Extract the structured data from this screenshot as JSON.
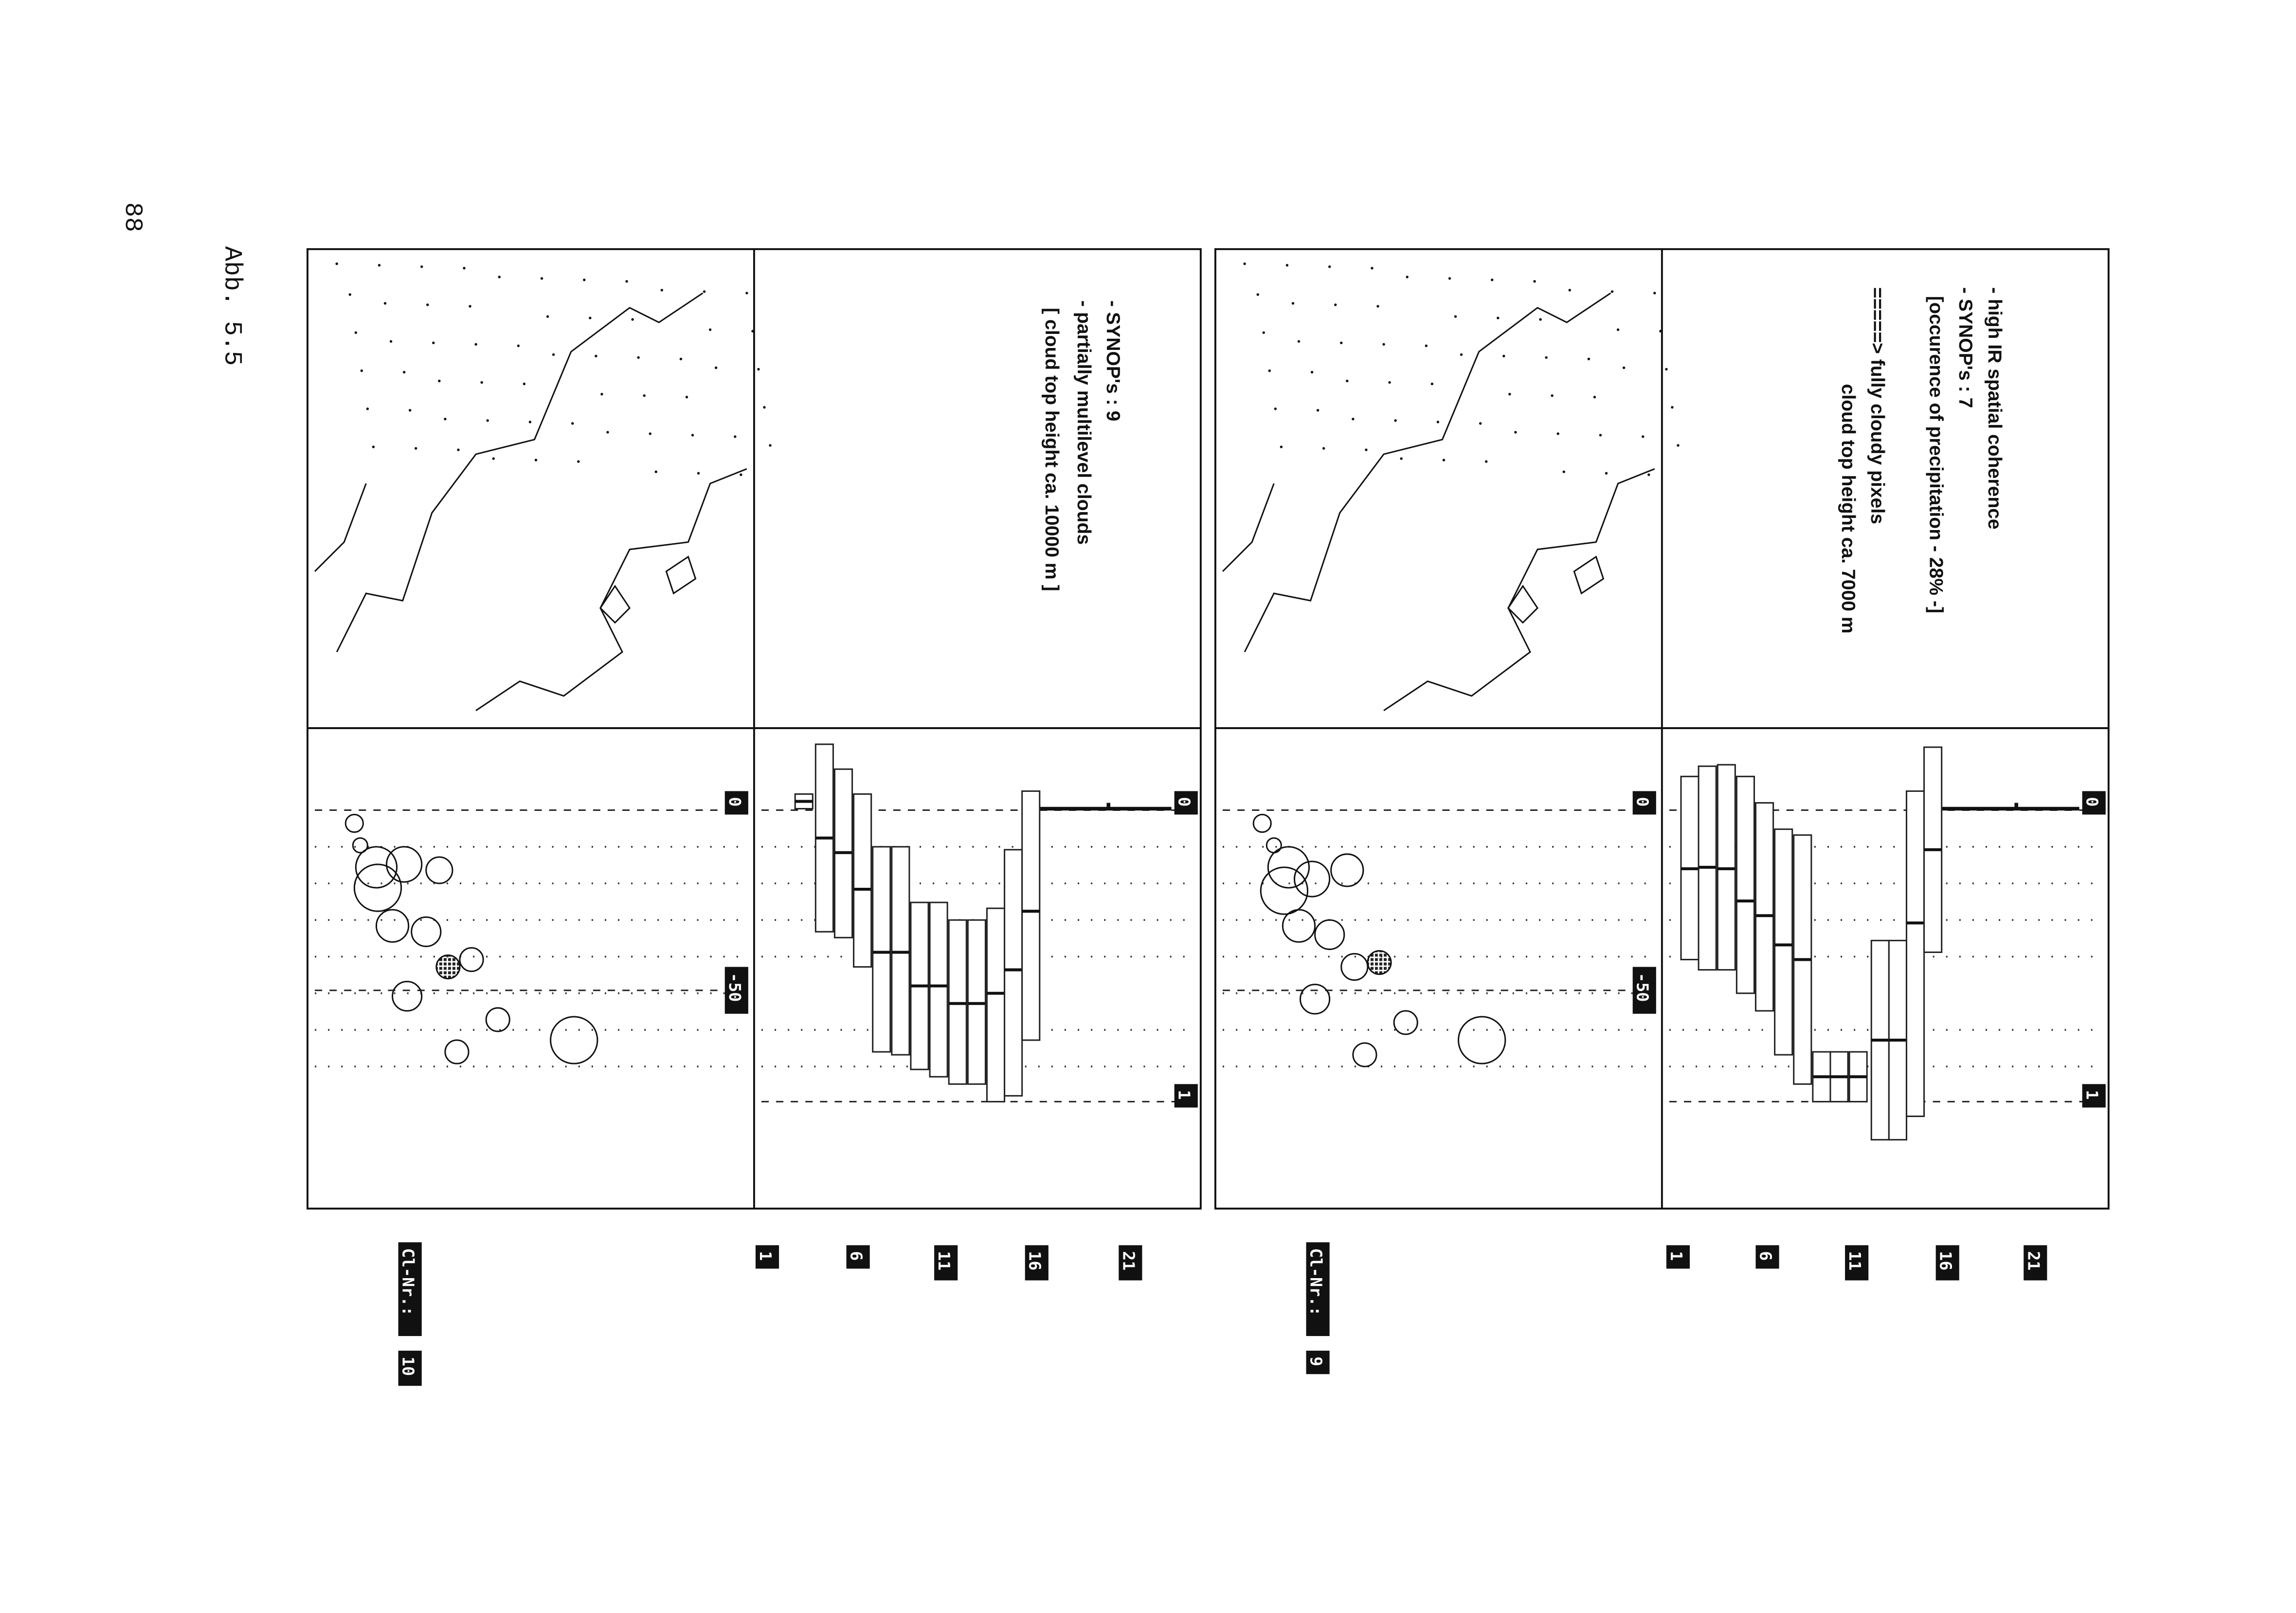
{
  "page_number": "88",
  "caption": "Abb. 5.5",
  "panels": [
    {
      "notes": [
        "- high IR spatial coherence",
        "- SYNOP's : 7",
        "[occurence of precipitation - 28% -]",
        "=====> fully cloudy pixels",
        "cloud top height ca. 7000 m"
      ],
      "scale_outer": [
        "0",
        "1"
      ],
      "scale_inner": [
        "0",
        "-50"
      ],
      "row_labels": [
        "21",
        "16",
        "11",
        "6",
        "1"
      ],
      "cluster_label": "Cl-Nr.:",
      "cluster_number": "9"
    },
    {
      "notes": [
        "- SYNOP's : 9",
        "- partially multilevel clouds",
        "[ cloud top height ca. 10000 m ]"
      ],
      "scale_outer": [
        "0",
        "1"
      ],
      "scale_inner": [
        "0",
        "-50"
      ],
      "row_labels": [
        "21",
        "16",
        "11",
        "6",
        "1"
      ],
      "cluster_label": "Cl-Nr.:",
      "cluster_number": "10"
    }
  ]
}
